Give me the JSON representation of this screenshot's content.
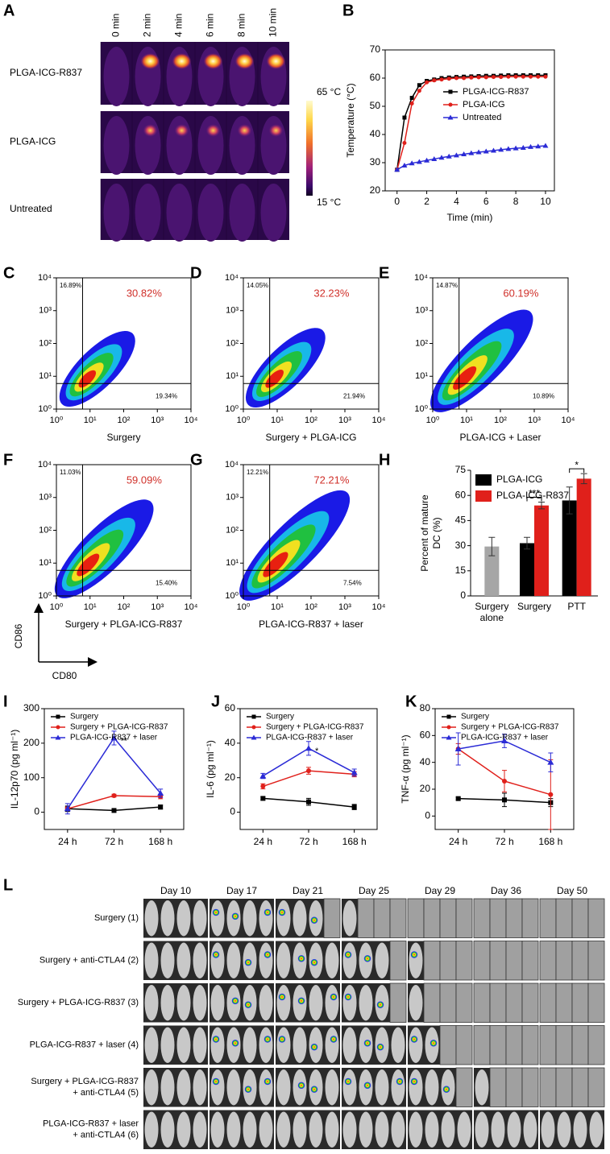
{
  "panels": {
    "A": {
      "label": "A",
      "times": [
        "0 min",
        "2 min",
        "4 min",
        "6 min",
        "8 min",
        "10 min"
      ],
      "rows": [
        "PLGA-ICG-R837",
        "PLGA-ICG",
        "Untreated"
      ],
      "scale_max": "65 °C",
      "scale_min": "15 °C"
    },
    "L": {
      "label": "L",
      "days": [
        "Day 10",
        "Day 17",
        "Day 21",
        "Day 25",
        "Day 29",
        "Day 36",
        "Day 50"
      ],
      "rows": [
        [
          "Surgery (1)"
        ],
        [
          "Surgery + anti-CTLA4 (2)"
        ],
        [
          "Surgery + PLGA-ICG-R837 (3)"
        ],
        [
          "PLGA-ICG-R837 + laser (4)"
        ],
        [
          "Surgery + PLGA-ICG-R837",
          "+ anti-CTLA4 (5)"
        ],
        [
          "PLGA-ICG-R837 + laser",
          "+ anti-CTLA4 (6)"
        ]
      ]
    }
  },
  "axis_arrows": {
    "y": "CD86",
    "x": "CD80"
  },
  "chart_data": [
    {
      "type": "line",
      "label": "B",
      "x_label": "Time (min)",
      "y_label": "Temperature (°C)",
      "x": [
        0,
        0.5,
        1,
        1.5,
        2,
        2.5,
        3,
        3.5,
        4,
        4.5,
        5,
        5.5,
        6,
        6.5,
        7,
        7.5,
        8,
        8.5,
        9,
        9.5,
        10
      ],
      "series": [
        {
          "name": "PLGA-ICG-R837",
          "color": "#000000",
          "values": [
            27.5,
            46,
            53,
            57.5,
            59,
            59.5,
            60,
            60.2,
            60.4,
            60.5,
            60.6,
            60.7,
            60.8,
            60.8,
            60.9,
            61,
            61,
            61,
            61,
            61,
            61
          ]
        },
        {
          "name": "PLGA-ICG",
          "color": "#e0201b",
          "values": [
            27.5,
            37,
            51,
            55.5,
            58.5,
            59.2,
            59.5,
            59.8,
            60,
            60,
            60.2,
            60.3,
            60.3,
            60.4,
            60.4,
            60.5,
            60.5,
            60.5,
            60.5,
            60.5,
            60.5
          ]
        },
        {
          "name": "Untreated",
          "color": "#2b2bd6",
          "values": [
            27.5,
            29,
            29.8,
            30.3,
            30.8,
            31.3,
            31.8,
            32.2,
            32.6,
            33,
            33.4,
            33.7,
            34,
            34.3,
            34.6,
            34.9,
            35.1,
            35.3,
            35.6,
            35.8,
            36
          ]
        }
      ],
      "xlim": [
        -0.8,
        10.6
      ],
      "xticks": [
        0,
        2,
        4,
        6,
        8,
        10
      ],
      "ylim": [
        20,
        70
      ],
      "yticks": [
        20,
        30,
        40,
        50,
        60,
        70
      ],
      "legend": "right"
    },
    {
      "type": "flow",
      "label": "C",
      "x_label": "Surgery",
      "log": true,
      "xlim": [
        1,
        10000
      ],
      "ylim": [
        1,
        10000
      ],
      "xticks": [
        {
          "value": 1,
          "label": "10⁰"
        },
        {
          "value": 10,
          "label": "10¹"
        },
        {
          "value": 100,
          "label": "10²"
        },
        {
          "value": 1000,
          "label": "10³"
        },
        {
          "value": 10000,
          "label": "10⁴"
        }
      ],
      "yticks": [
        {
          "value": 1,
          "label": "10⁰"
        },
        {
          "value": 10,
          "label": "10¹"
        },
        {
          "value": 100,
          "label": "10²"
        },
        {
          "value": 1000,
          "label": "10³"
        },
        {
          "value": 10000,
          "label": "10⁴"
        }
      ],
      "gate": {
        "x": 6,
        "y": 6
      },
      "quadrants": {
        "upper_left": "16.89%",
        "upper_right": "30.82%",
        "lower_right": "19.34%"
      }
    },
    {
      "type": "flow",
      "label": "D",
      "x_label": "Surgery + PLGA-ICG",
      "log": true,
      "xlim": [
        1,
        10000
      ],
      "ylim": [
        1,
        10000
      ],
      "xticks": [
        {
          "value": 1,
          "label": "10⁰"
        },
        {
          "value": 10,
          "label": "10¹"
        },
        {
          "value": 100,
          "label": "10²"
        },
        {
          "value": 1000,
          "label": "10³"
        },
        {
          "value": 10000,
          "label": "10⁴"
        }
      ],
      "yticks": [
        {
          "value": 1,
          "label": "10⁰"
        },
        {
          "value": 10,
          "label": "10¹"
        },
        {
          "value": 100,
          "label": "10²"
        },
        {
          "value": 1000,
          "label": "10³"
        },
        {
          "value": 10000,
          "label": "10⁴"
        }
      ],
      "gate": {
        "x": 6,
        "y": 6
      },
      "quadrants": {
        "upper_left": "14.05%",
        "upper_right": "32.23%",
        "lower_right": "21.94%"
      }
    },
    {
      "type": "flow",
      "label": "E",
      "x_label": "PLGA-ICG + Laser",
      "log": true,
      "xlim": [
        1,
        10000
      ],
      "ylim": [
        1,
        10000
      ],
      "xticks": [
        {
          "value": 1,
          "label": "10⁰"
        },
        {
          "value": 10,
          "label": "10¹"
        },
        {
          "value": 100,
          "label": "10²"
        },
        {
          "value": 1000,
          "label": "10³"
        },
        {
          "value": 10000,
          "label": "10⁴"
        }
      ],
      "yticks": [
        {
          "value": 1,
          "label": "10⁰"
        },
        {
          "value": 10,
          "label": "10¹"
        },
        {
          "value": 100,
          "label": "10²"
        },
        {
          "value": 1000,
          "label": "10³"
        },
        {
          "value": 10000,
          "label": "10⁴"
        }
      ],
      "gate": {
        "x": 6,
        "y": 6
      },
      "quadrants": {
        "upper_left": "14.87%",
        "upper_right": "60.19%",
        "lower_right": "10.89%"
      }
    },
    {
      "type": "flow",
      "label": "F",
      "x_label": "Surgery + PLGA-ICG-R837",
      "log": true,
      "xlim": [
        1,
        10000
      ],
      "ylim": [
        1,
        10000
      ],
      "xticks": [
        {
          "value": 1,
          "label": "10⁰"
        },
        {
          "value": 10,
          "label": "10¹"
        },
        {
          "value": 100,
          "label": "10²"
        },
        {
          "value": 1000,
          "label": "10³"
        },
        {
          "value": 10000,
          "label": "10⁴"
        }
      ],
      "yticks": [
        {
          "value": 1,
          "label": "10⁰"
        },
        {
          "value": 10,
          "label": "10¹"
        },
        {
          "value": 100,
          "label": "10²"
        },
        {
          "value": 1000,
          "label": "10³"
        },
        {
          "value": 10000,
          "label": "10⁴"
        }
      ],
      "gate": {
        "x": 6,
        "y": 6
      },
      "quadrants": {
        "upper_left": "11.03%",
        "upper_right": "59.09%",
        "lower_right": "15.40%"
      }
    },
    {
      "type": "flow",
      "label": "G",
      "x_label": "PLGA-ICG-R837 + laser",
      "log": true,
      "xlim": [
        1,
        10000
      ],
      "ylim": [
        1,
        10000
      ],
      "xticks": [
        {
          "value": 1,
          "label": "10⁰"
        },
        {
          "value": 10,
          "label": "10¹"
        },
        {
          "value": 100,
          "label": "10²"
        },
        {
          "value": 1000,
          "label": "10³"
        },
        {
          "value": 10000,
          "label": "10⁴"
        }
      ],
      "yticks": [
        {
          "value": 1,
          "label": "10⁰"
        },
        {
          "value": 10,
          "label": "10¹"
        },
        {
          "value": 100,
          "label": "10²"
        },
        {
          "value": 1000,
          "label": "10³"
        },
        {
          "value": 10000,
          "label": "10⁴"
        }
      ],
      "gate": {
        "x": 6,
        "y": 6
      },
      "quadrants": {
        "upper_left": "12.21%",
        "upper_right": "72.21%",
        "lower_right": "7.54%"
      }
    },
    {
      "type": "bar",
      "label": "H",
      "y_label": [
        "Percent of mature",
        "DC (%)"
      ],
      "categories": [
        [
          "Surgery",
          "alone"
        ],
        [
          "Surgery"
        ],
        [
          "PTT"
        ]
      ],
      "series": [
        {
          "name": "PLGA-ICG",
          "color": "#000000",
          "values": [
            null,
            31.5,
            57
          ],
          "errors": [
            null,
            3.5,
            8
          ]
        },
        {
          "name": "PLGA-ICG-R837",
          "color": "#e0201b",
          "values": [
            null,
            54,
            70
          ],
          "errors": [
            null,
            2,
            3
          ]
        },
        {
          "color": "#a6a6a6",
          "values": [
            29.5,
            null,
            null
          ],
          "errors": [
            5.5,
            null,
            null
          ]
        }
      ],
      "significance": [
        null,
        "***",
        "*"
      ],
      "ylim": [
        0,
        75
      ],
      "yticks": [
        0,
        15,
        30,
        45,
        60,
        75
      ],
      "legend": "upper left"
    },
    {
      "type": "line",
      "label": "I",
      "y_label": "IL-12p70 (pg ml⁻¹)",
      "categories": [
        "24 h",
        "72 h",
        "168 h"
      ],
      "series": [
        {
          "name": "Surgery",
          "color": "#000000",
          "values": [
            10,
            5,
            15
          ],
          "errors": [
            8,
            4,
            6
          ]
        },
        {
          "name": "Surgery + PLGA-ICG-R837",
          "color": "#e0201b",
          "values": [
            10,
            48,
            45
          ],
          "errors": [
            5,
            4,
            6
          ]
        },
        {
          "name": "PLGA-ICG-R837 + laser",
          "color": "#2b2bd6",
          "values": [
            10,
            215,
            55
          ],
          "errors": [
            15,
            20,
            12
          ]
        }
      ],
      "annotation": "**",
      "ylim": [
        -50,
        300
      ],
      "yticks": [
        0,
        100,
        200,
        300
      ],
      "legend": "upper left"
    },
    {
      "type": "line",
      "label": "J",
      "y_label": "IL-6 (pg ml⁻¹)",
      "categories": [
        "24 h",
        "72 h",
        "168 h"
      ],
      "series": [
        {
          "name": "Surgery",
          "color": "#000000",
          "values": [
            8,
            6,
            3
          ],
          "errors": [
            1,
            2,
            1.5
          ]
        },
        {
          "name": "Surgery + PLGA-ICG-R837",
          "color": "#e0201b",
          "values": [
            15,
            24,
            22
          ],
          "errors": [
            1.5,
            2,
            1.5
          ]
        },
        {
          "name": "PLGA-ICG-R837 + laser",
          "color": "#2b2bd6",
          "values": [
            21,
            37,
            23
          ],
          "errors": [
            1.5,
            4,
            2
          ]
        }
      ],
      "annotation": "*",
      "ylim": [
        -10,
        60
      ],
      "yticks": [
        0,
        20,
        40,
        60
      ],
      "legend": "upper left"
    },
    {
      "type": "line",
      "label": "K",
      "y_label": "TNF-α (pg ml⁻¹)",
      "categories": [
        "24 h",
        "72 h",
        "168 h"
      ],
      "series": [
        {
          "name": "Surgery",
          "color": "#000000",
          "values": [
            13,
            12,
            10
          ],
          "errors": [
            1,
            5,
            3
          ]
        },
        {
          "name": "Surgery + PLGA-ICG-R837",
          "color": "#e0201b",
          "values": [
            50,
            26,
            16
          ],
          "errors": [
            4,
            8,
            26
          ]
        },
        {
          "name": "PLGA-ICG-R837 + laser",
          "color": "#2b2bd6",
          "values": [
            50,
            56,
            40
          ],
          "errors": [
            12,
            5,
            7
          ]
        }
      ],
      "ylim": [
        -10,
        80
      ],
      "yticks": [
        0,
        20,
        40,
        60,
        80
      ],
      "legend": "upper left"
    }
  ]
}
